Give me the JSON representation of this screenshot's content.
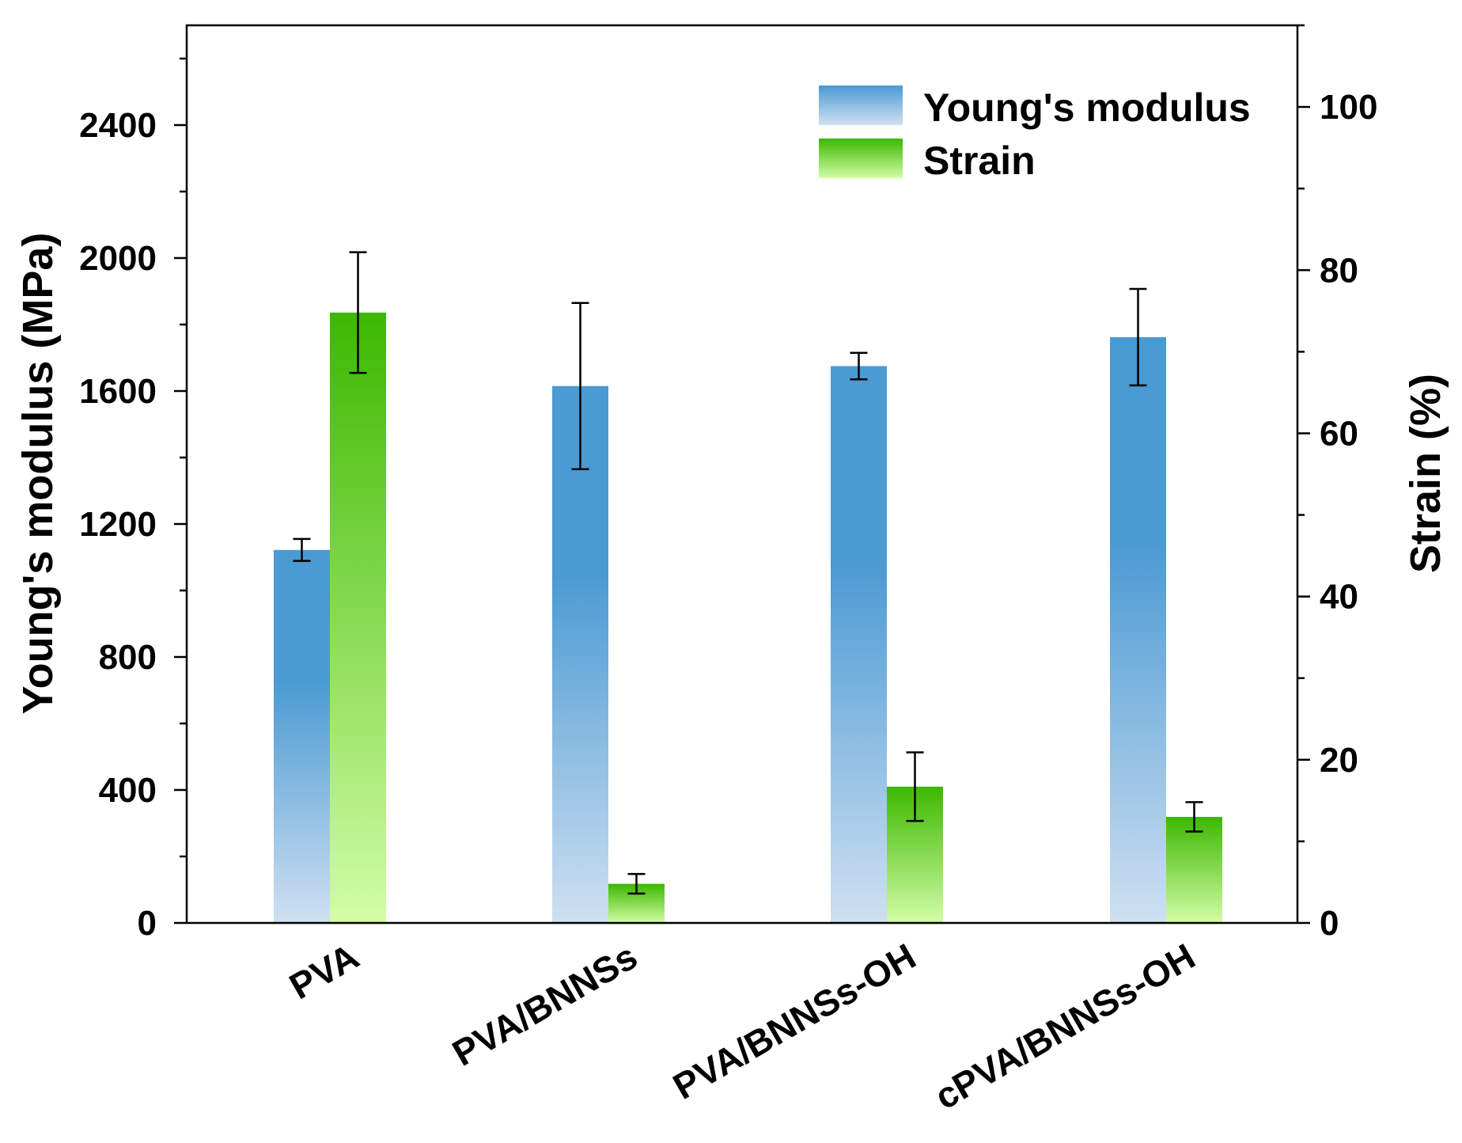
{
  "chart_data": {
    "type": "bar",
    "categories": [
      "PVA",
      "PVA/BNNSs",
      "PVA/BNNSs-OH",
      "cPVA/BNNSs-OH"
    ],
    "series": [
      {
        "name": "Young's modulus",
        "axis": "left",
        "values": [
          1122,
          1615,
          1675,
          1762
        ],
        "errors": [
          33,
          250,
          40,
          145
        ],
        "color_top": "#4a9ad3",
        "color_bottom": "#cfe0f1"
      },
      {
        "name": "Strain",
        "axis": "right",
        "values": [
          74.8,
          4.8,
          16.7,
          13.0
        ],
        "errors": [
          7.4,
          1.2,
          4.2,
          1.8
        ],
        "color_top": "#3cb800",
        "color_bottom": "#d3fda6"
      }
    ],
    "left_axis": {
      "label": "Young's modulus (MPa)",
      "ylim": [
        0,
        2700
      ],
      "ticks": [
        0,
        400,
        800,
        1200,
        1600,
        2000,
        2400
      ],
      "tick_labels": [
        "0",
        "400",
        "800",
        "1200",
        "1600",
        "2000",
        "2400"
      ],
      "minor_step": 200
    },
    "right_axis": {
      "label": "Strain (%)",
      "ylim": [
        0,
        110
      ],
      "ticks": [
        0,
        20,
        40,
        60,
        80,
        100
      ],
      "tick_labels": [
        "0",
        "20",
        "40",
        "60",
        "80",
        "100"
      ],
      "minor_step": 10
    },
    "legend": {
      "placement": "top-right",
      "entries": [
        "Young's modulus",
        "Strain"
      ]
    },
    "grid": false
  }
}
